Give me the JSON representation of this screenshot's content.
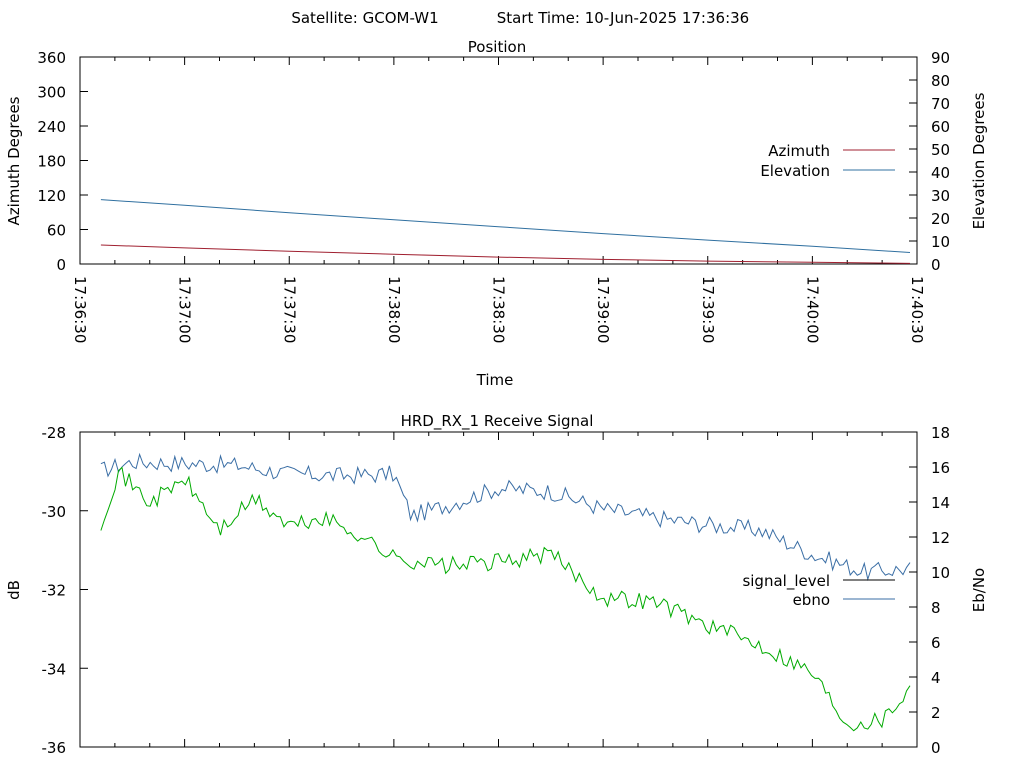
{
  "header": {
    "satellite_label": "Satellite: GCOM-W1",
    "start_time_label": "Start Time: 10-Jun-2025 17:36:36"
  },
  "colors": {
    "azimuth": "#a02030",
    "elevation": "#3070a0",
    "signal_level": "#000000",
    "ebno": "#3a6ea5",
    "signal_trace": "#00aa00"
  },
  "chart_data": [
    {
      "type": "line",
      "title": "Position",
      "xlabel": "Time",
      "ylabel": "Azimuth Degrees",
      "y2label": "Elevation Degrees",
      "x_ticks": [
        "17:36:30",
        "17:37:00",
        "17:37:30",
        "17:38:00",
        "17:38:30",
        "17:39:00",
        "17:39:30",
        "17:40:00",
        "17:40:30"
      ],
      "x_range": [
        "17:36:30",
        "17:40:30"
      ],
      "ylim": [
        0,
        360
      ],
      "y_ticks": [
        0,
        60,
        120,
        180,
        240,
        300,
        360
      ],
      "y2lim": [
        0,
        90
      ],
      "y2_ticks": [
        0,
        10,
        20,
        30,
        40,
        50,
        60,
        70,
        80,
        90
      ],
      "legend_position": "right",
      "grid": false,
      "series": [
        {
          "name": "Azimuth",
          "axis": "y",
          "x": [
            "17:36:36",
            "17:37:00",
            "17:37:30",
            "17:38:00",
            "17:38:30",
            "17:39:00",
            "17:39:30",
            "17:40:00",
            "17:40:28"
          ],
          "values": [
            33,
            28,
            22,
            17,
            12,
            8,
            5,
            3,
            1
          ]
        },
        {
          "name": "Elevation",
          "axis": "y2",
          "x": [
            "17:36:36",
            "17:37:00",
            "17:37:30",
            "17:38:00",
            "17:38:30",
            "17:39:00",
            "17:39:30",
            "17:40:00",
            "17:40:28"
          ],
          "values": [
            28,
            25.5,
            22.3,
            19.2,
            16.2,
            13.2,
            10.4,
            7.7,
            5
          ]
        }
      ]
    },
    {
      "type": "line",
      "title": "HRD_RX_1 Receive Signal",
      "xlabel": "",
      "ylabel": "dB",
      "y2label": "Eb/No",
      "ylim": [
        -36,
        -28
      ],
      "y_ticks": [
        -36,
        -34,
        -32,
        -30,
        -28
      ],
      "y2lim": [
        0,
        18
      ],
      "y2_ticks": [
        0,
        2,
        4,
        6,
        8,
        10,
        12,
        14,
        16,
        18
      ],
      "legend_position": "right",
      "grid": false,
      "series": [
        {
          "name": "signal_level",
          "axis": "y",
          "x": [],
          "values": []
        },
        {
          "name": "ebno",
          "axis": "y2",
          "x": [
            "17:36:36",
            "17:36:45",
            "17:37:00",
            "17:37:15",
            "17:37:30",
            "17:37:45",
            "17:38:00",
            "17:38:05",
            "17:38:15",
            "17:38:30",
            "17:38:45",
            "17:39:00",
            "17:39:15",
            "17:39:30",
            "17:39:45",
            "17:40:00",
            "17:40:15",
            "17:40:28"
          ],
          "values": [
            15.8,
            16.3,
            16.2,
            16.1,
            15.6,
            15.5,
            15.6,
            13.2,
            13.8,
            14.8,
            14.6,
            13.6,
            13.1,
            12.7,
            12.4,
            11,
            10,
            10.2
          ]
        },
        {
          "name": "",
          "axis": "y",
          "x": [
            "17:36:36",
            "17:36:41",
            "17:36:50",
            "17:37:00",
            "17:37:10",
            "17:37:20",
            "17:37:30",
            "17:37:40",
            "17:37:50",
            "17:38:00",
            "17:38:15",
            "17:38:30",
            "17:38:45",
            "17:39:00",
            "17:39:15",
            "17:39:30",
            "17:39:45",
            "17:40:00",
            "17:40:10",
            "17:40:20",
            "17:40:28"
          ],
          "values": [
            -30.3,
            -29.0,
            -29.8,
            -29.2,
            -30.5,
            -29.7,
            -30.4,
            -30.2,
            -30.6,
            -31.2,
            -31.4,
            -31.3,
            -31.1,
            -32.2,
            -32.3,
            -32.9,
            -33.4,
            -34.1,
            -35.4,
            -35.3,
            -34.5
          ]
        }
      ]
    }
  ]
}
